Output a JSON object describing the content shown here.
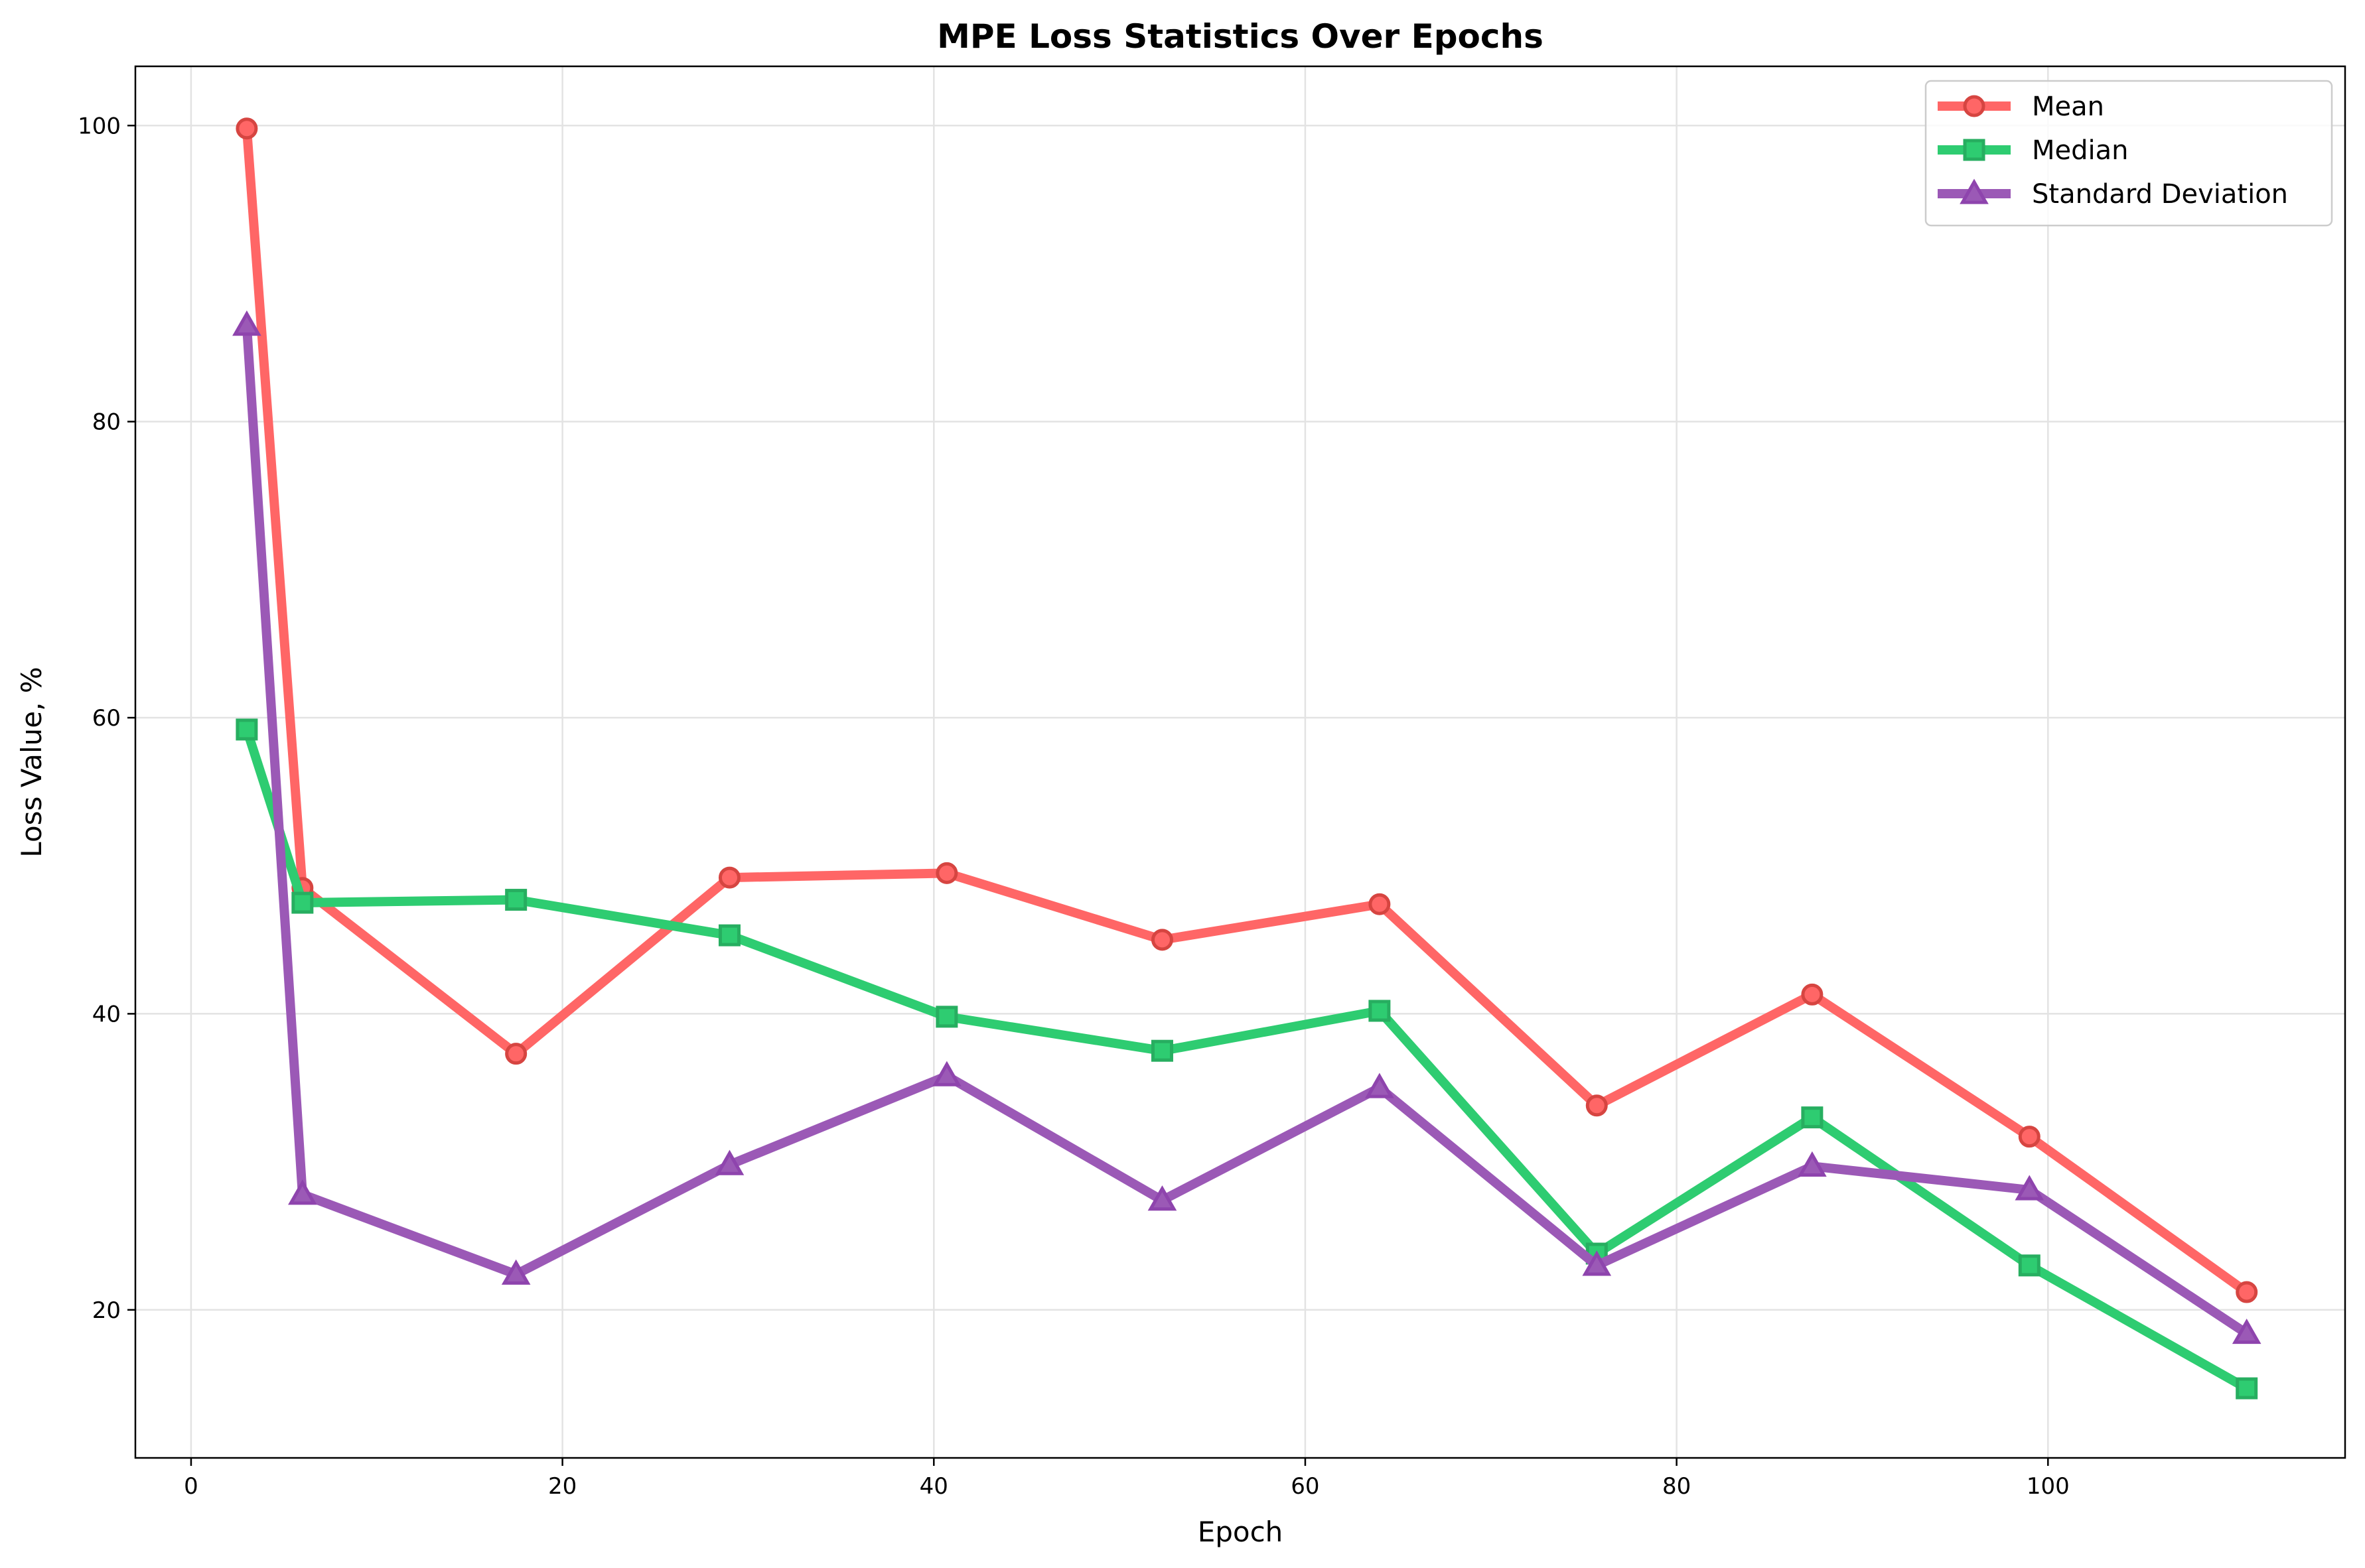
{
  "chart_data": {
    "type": "line",
    "title": "MPE Loss Statistics Over Epochs",
    "xlabel": "Epoch",
    "ylabel": "Loss Value, %",
    "xlim": [
      -3,
      116
    ],
    "ylim": [
      10,
      104
    ],
    "x_ticks": [
      0,
      20,
      40,
      60,
      80,
      100
    ],
    "y_ticks": [
      20,
      40,
      60,
      80,
      100
    ],
    "grid": true,
    "legend_position": "top-right",
    "x": [
      3,
      6,
      17.5,
      29,
      40.7,
      52.3,
      64,
      75.7,
      87.3,
      99,
      110.7
    ],
    "series": [
      {
        "name": "Mean",
        "color": "#ff6666",
        "edge_color": "#d64541",
        "marker": "circle",
        "values": [
          99.8,
          48.5,
          37.3,
          49.2,
          49.5,
          45.0,
          47.4,
          33.8,
          41.3,
          31.7,
          21.2
        ]
      },
      {
        "name": "Median",
        "color": "#2ecc71",
        "edge_color": "#27ae60",
        "marker": "square",
        "values": [
          59.2,
          47.5,
          47.7,
          45.3,
          39.8,
          37.5,
          40.2,
          23.8,
          33.0,
          23.0,
          14.7
        ]
      },
      {
        "name": "Standard Deviation",
        "color": "#9b59b6",
        "edge_color": "#8e44ad",
        "marker": "triangle",
        "values": [
          86.5,
          27.8,
          22.4,
          29.8,
          35.8,
          27.4,
          35.0,
          23.0,
          29.7,
          28.1,
          18.4
        ]
      }
    ]
  }
}
